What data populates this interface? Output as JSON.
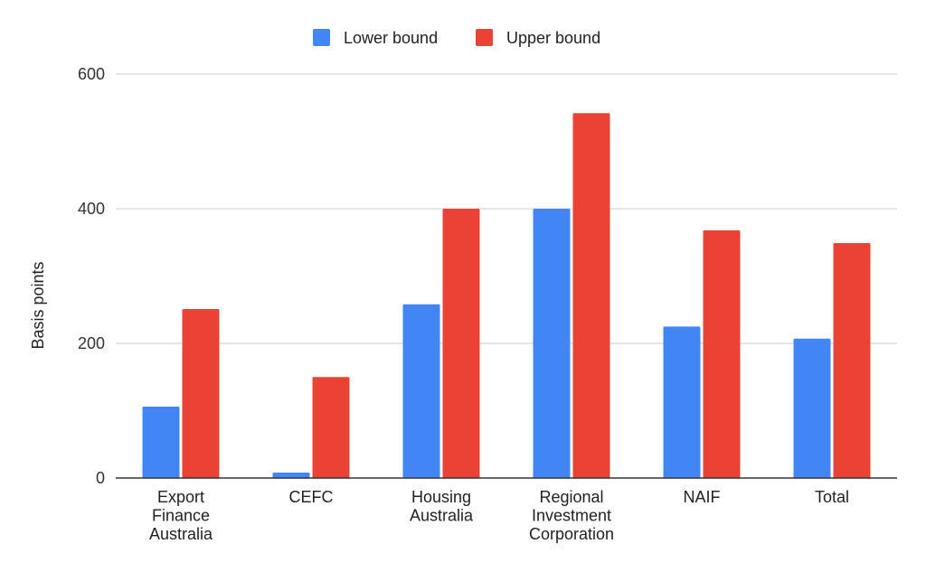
{
  "chart_data": {
    "type": "bar",
    "title": "",
    "xlabel": "",
    "ylabel": "Basis points",
    "ylim": [
      0,
      600
    ],
    "yticks": [
      0,
      200,
      400,
      600
    ],
    "grid": true,
    "legend_position": "top-center",
    "categories": [
      [
        "Export",
        "Finance",
        "Australia"
      ],
      [
        "CEFC"
      ],
      [
        "Housing",
        "Australia"
      ],
      [
        "Regional",
        "Investment",
        "Corporation"
      ],
      [
        "NAIF"
      ],
      [
        "Total"
      ]
    ],
    "series": [
      {
        "name": "Lower bound",
        "color": "#4285f4",
        "values": [
          106,
          8,
          258,
          400,
          225,
          207
        ]
      },
      {
        "name": "Upper bound",
        "color": "#ea4335",
        "values": [
          251,
          150,
          400,
          542,
          368,
          349
        ]
      }
    ]
  }
}
